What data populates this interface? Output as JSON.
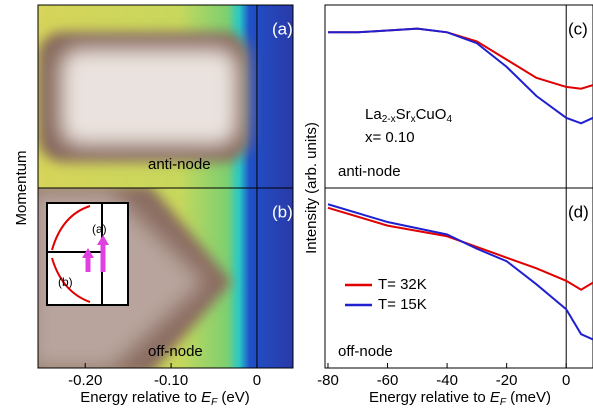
{
  "chart_data": [
    {
      "type": "heatmap",
      "x_label": {
        "text": "Energy relative to ",
        "symbol": "E",
        "subscript": "F",
        "unit": " (eV)"
      },
      "y_label": "Momentum",
      "xlim": [
        -0.255,
        0.042
      ],
      "xticks": [
        {
          "value": -0.2,
          "label": "-0.20"
        },
        {
          "value": -0.1,
          "label": "-0.10"
        },
        0
      ],
      "ref_line": 0,
      "panels": [
        {
          "label": "(a)",
          "annotation": "anti-node"
        },
        {
          "label": "(b)",
          "annotation": "off-node",
          "inset_labels": [
            "(a)",
            "(b)"
          ]
        }
      ]
    },
    {
      "type": "line",
      "x_label": {
        "text": "Energy relative to ",
        "symbol": "E",
        "subscript": "F",
        "unit": " (meV)"
      },
      "y_label": "Intensity (arb. units)",
      "xlim": [
        -81,
        9
      ],
      "xticks": [
        -80,
        -60,
        -40,
        -20,
        0
      ],
      "ylim": [
        0,
        1
      ],
      "ref_line": 0,
      "panels": [
        {
          "label": "(c)",
          "annotation": "anti-node",
          "compound": [
            "La",
            "2-x",
            "Sr",
            "x",
            "CuO",
            "4"
          ],
          "doping": "x= 0.10",
          "x": [
            -80,
            -70,
            -60,
            -50,
            -40,
            -30,
            -20,
            -10,
            0,
            5,
            9
          ],
          "series": [
            {
              "color": "#e00000",
              "values": [
                0.85,
                0.85,
                0.86,
                0.87,
                0.85,
                0.8,
                0.7,
                0.6,
                0.55,
                0.54,
                0.56
              ]
            },
            {
              "color": "#2020d0",
              "values": [
                0.85,
                0.85,
                0.86,
                0.87,
                0.85,
                0.79,
                0.66,
                0.5,
                0.38,
                0.35,
                0.38
              ]
            }
          ]
        },
        {
          "label": "(d)",
          "annotation": "off-node",
          "x": [
            -80,
            -60,
            -40,
            -30,
            -20,
            -10,
            0,
            5,
            9
          ],
          "series": [
            {
              "name": "T= 32K",
              "color": "#e00000",
              "values": [
                0.9,
                0.8,
                0.74,
                0.68,
                0.62,
                0.56,
                0.49,
                0.44,
                0.48
              ]
            },
            {
              "name": "T= 15K",
              "color": "#2020d0",
              "values": [
                0.92,
                0.82,
                0.75,
                0.67,
                0.6,
                0.47,
                0.33,
                0.19,
                0.16
              ]
            }
          ]
        }
      ]
    }
  ]
}
